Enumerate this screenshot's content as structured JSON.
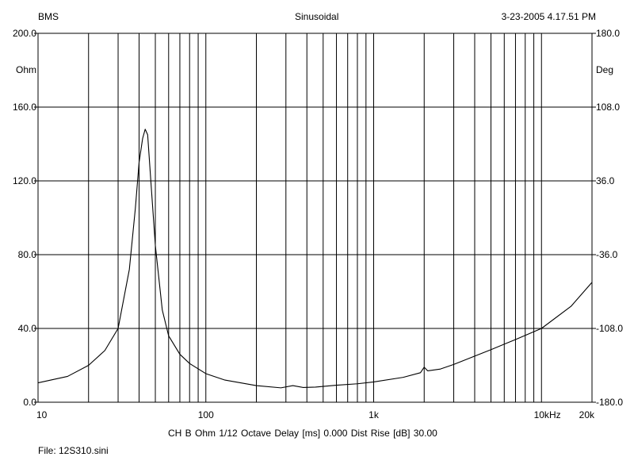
{
  "header": {
    "left": "BMS",
    "center": "Sinusoidal",
    "right": "3-23-2005 4.17.51 PM"
  },
  "footer": {
    "settings": "CH B   Ohm   1/12 Octave   Delay [ms] 0.000   Dist Rise [dB] 30.00",
    "file": "File: 12S310.sini"
  },
  "chart_data": {
    "type": "line",
    "xscale": "log",
    "xlim": [
      10,
      20000
    ],
    "ylim": [
      0,
      200
    ],
    "y2lim": [
      -180,
      180
    ],
    "grid": true,
    "x_tick_labels": [
      {
        "value": 10,
        "label": "10"
      },
      {
        "value": 100,
        "label": "100"
      },
      {
        "value": 1000,
        "label": "1k"
      },
      {
        "value": 10000,
        "label": "10k"
      },
      {
        "value": 20000,
        "label": "20k"
      }
    ],
    "x_unit": "Hz",
    "y_ticks": [
      "0.0",
      "40.0",
      "80.0",
      "120.0",
      "160.0",
      "200.0"
    ],
    "y_unit": "Ohm",
    "y2_ticks": [
      "-180.0",
      "-108.0",
      "-36.0",
      "36.0",
      "108.0",
      "180.0"
    ],
    "y2_unit": "Deg",
    "series": [
      {
        "x": [
          10,
          15,
          20,
          25,
          30,
          35,
          38,
          40,
          42,
          43.5,
          45,
          47,
          50,
          55,
          60,
          70,
          80,
          100,
          130,
          200,
          280,
          330,
          380,
          450,
          600,
          800,
          1000,
          1500,
          1900,
          2000,
          2100,
          2500,
          3000,
          4000,
          5000,
          7000,
          10000,
          15000,
          20000
        ],
        "y": [
          10.5,
          14,
          20,
          28,
          40,
          72,
          105,
          130,
          143,
          148,
          145,
          120,
          85,
          50,
          36,
          26,
          21,
          15.5,
          12,
          9,
          7.8,
          9,
          8,
          8.2,
          9.2,
          10,
          11,
          13.5,
          16,
          19,
          17,
          18,
          20.5,
          25,
          28.5,
          34,
          40,
          52,
          65
        ]
      }
    ]
  }
}
